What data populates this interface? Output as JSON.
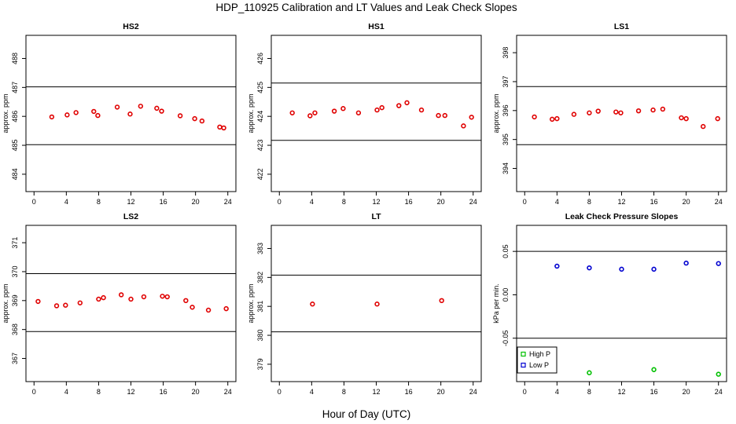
{
  "figure": {
    "title": "HDP_110925  Calibration and LT Values and Leak Check Slopes",
    "xlabel": "Hour of Day (UTC)"
  },
  "colors": {
    "red": "#e00000",
    "green": "#00c000",
    "blue": "#0000d0"
  },
  "chart_data": [
    {
      "type": "scatter",
      "title": "HS2",
      "ylabel": "approx. ppm",
      "xlim": [
        -1,
        25
      ],
      "xticks": [
        0,
        4,
        8,
        12,
        16,
        20,
        24
      ],
      "ylim": [
        483.4,
        488.8
      ],
      "yticks": [
        484,
        485,
        486,
        487,
        488
      ],
      "hlines": [
        487.02,
        485.02
      ],
      "series": [
        {
          "color": "red",
          "points": [
            [
              2.2,
              485.98
            ],
            [
              4.1,
              486.05
            ],
            [
              5.2,
              486.13
            ],
            [
              7.4,
              486.17
            ],
            [
              7.9,
              486.03
            ],
            [
              10.3,
              486.32
            ],
            [
              11.9,
              486.08
            ],
            [
              13.2,
              486.35
            ],
            [
              15.2,
              486.28
            ],
            [
              15.8,
              486.18
            ],
            [
              18.1,
              486.02
            ],
            [
              19.9,
              485.92
            ],
            [
              20.8,
              485.84
            ],
            [
              23.0,
              485.63
            ],
            [
              23.5,
              485.6
            ]
          ]
        }
      ]
    },
    {
      "type": "scatter",
      "title": "HS1",
      "ylabel": "approx. ppm",
      "xlim": [
        -1,
        25
      ],
      "xticks": [
        0,
        4,
        8,
        12,
        16,
        20,
        24
      ],
      "ylim": [
        421.4,
        426.8
      ],
      "yticks": [
        422,
        423,
        424,
        425,
        426
      ],
      "hlines": [
        425.15,
        423.17
      ],
      "series": [
        {
          "color": "red",
          "points": [
            [
              1.6,
              424.12
            ],
            [
              3.8,
              424.02
            ],
            [
              4.4,
              424.12
            ],
            [
              6.8,
              424.18
            ],
            [
              7.9,
              424.27
            ],
            [
              9.8,
              424.12
            ],
            [
              12.1,
              424.22
            ],
            [
              12.7,
              424.3
            ],
            [
              14.8,
              424.37
            ],
            [
              15.8,
              424.47
            ],
            [
              17.6,
              424.22
            ],
            [
              19.7,
              424.03
            ],
            [
              20.5,
              424.03
            ],
            [
              22.8,
              423.67
            ],
            [
              23.8,
              423.97
            ]
          ]
        }
      ]
    },
    {
      "type": "scatter",
      "title": "LS1",
      "ylabel": "approx. ppm",
      "xlim": [
        -1,
        25
      ],
      "xticks": [
        0,
        4,
        8,
        12,
        16,
        20,
        24
      ],
      "ylim": [
        393.2,
        398.6
      ],
      "yticks": [
        394,
        395,
        396,
        397,
        398
      ],
      "hlines": [
        396.83,
        394.82
      ],
      "series": [
        {
          "color": "red",
          "points": [
            [
              1.2,
              395.78
            ],
            [
              3.4,
              395.7
            ],
            [
              4.0,
              395.72
            ],
            [
              6.1,
              395.87
            ],
            [
              8.0,
              395.92
            ],
            [
              9.1,
              395.98
            ],
            [
              11.3,
              395.95
            ],
            [
              11.9,
              395.92
            ],
            [
              14.1,
              395.99
            ],
            [
              15.9,
              396.02
            ],
            [
              17.1,
              396.05
            ],
            [
              19.4,
              395.75
            ],
            [
              20.0,
              395.72
            ],
            [
              22.1,
              395.45
            ],
            [
              23.9,
              395.72
            ]
          ]
        }
      ]
    },
    {
      "type": "scatter",
      "title": "LS2",
      "ylabel": "approx. ppm",
      "xlim": [
        -1,
        25
      ],
      "xticks": [
        0,
        4,
        8,
        12,
        16,
        20,
        24
      ],
      "ylim": [
        366.2,
        371.6
      ],
      "yticks": [
        367,
        368,
        369,
        370,
        371
      ],
      "hlines": [
        369.93,
        367.93
      ],
      "series": [
        {
          "color": "red",
          "points": [
            [
              0.5,
              368.97
            ],
            [
              2.8,
              368.82
            ],
            [
              3.9,
              368.84
            ],
            [
              5.7,
              368.92
            ],
            [
              8.0,
              369.05
            ],
            [
              8.6,
              369.1
            ],
            [
              10.8,
              369.2
            ],
            [
              12.0,
              369.05
            ],
            [
              13.6,
              369.13
            ],
            [
              15.9,
              369.15
            ],
            [
              16.5,
              369.13
            ],
            [
              18.8,
              369.0
            ],
            [
              19.6,
              368.77
            ],
            [
              21.6,
              368.67
            ],
            [
              23.8,
              368.72
            ]
          ]
        }
      ]
    },
    {
      "type": "scatter",
      "title": "LT",
      "ylabel": "approx. ppm",
      "xlim": [
        -1,
        25
      ],
      "xticks": [
        0,
        4,
        8,
        12,
        16,
        20,
        24
      ],
      "ylim": [
        378.4,
        383.8
      ],
      "yticks": [
        379,
        380,
        381,
        382,
        383
      ],
      "hlines": [
        382.08,
        380.12
      ],
      "series": [
        {
          "color": "red",
          "points": [
            [
              4.1,
              381.08
            ],
            [
              12.1,
              381.08
            ],
            [
              20.1,
              381.2
            ]
          ]
        }
      ]
    },
    {
      "type": "scatter",
      "title": "Leak Check Pressure Slopes",
      "ylabel": "kPa per min.",
      "xlim": [
        -1,
        25
      ],
      "xticks": [
        0,
        4,
        8,
        12,
        16,
        20,
        24
      ],
      "ylim": [
        -0.1,
        0.08
      ],
      "yticks": [
        -0.05,
        0.0,
        0.05
      ],
      "ytick_labels": [
        "-0.05",
        "0.00",
        "0.05"
      ],
      "hlines": [
        0.05,
        -0.05
      ],
      "legend": {
        "placement": "bottom-left"
      },
      "series": [
        {
          "name": "High P",
          "color": "green",
          "points": [
            [
              8.0,
              -0.0898
            ],
            [
              16.0,
              -0.0862
            ],
            [
              24.0,
              -0.0915
            ]
          ]
        },
        {
          "name": "Low P",
          "color": "blue",
          "points": [
            [
              4.0,
              0.033
            ],
            [
              8.0,
              0.031
            ],
            [
              12.0,
              0.0295
            ],
            [
              16.0,
              0.0295
            ],
            [
              20.0,
              0.0365
            ],
            [
              24.0,
              0.036
            ]
          ]
        }
      ]
    }
  ]
}
